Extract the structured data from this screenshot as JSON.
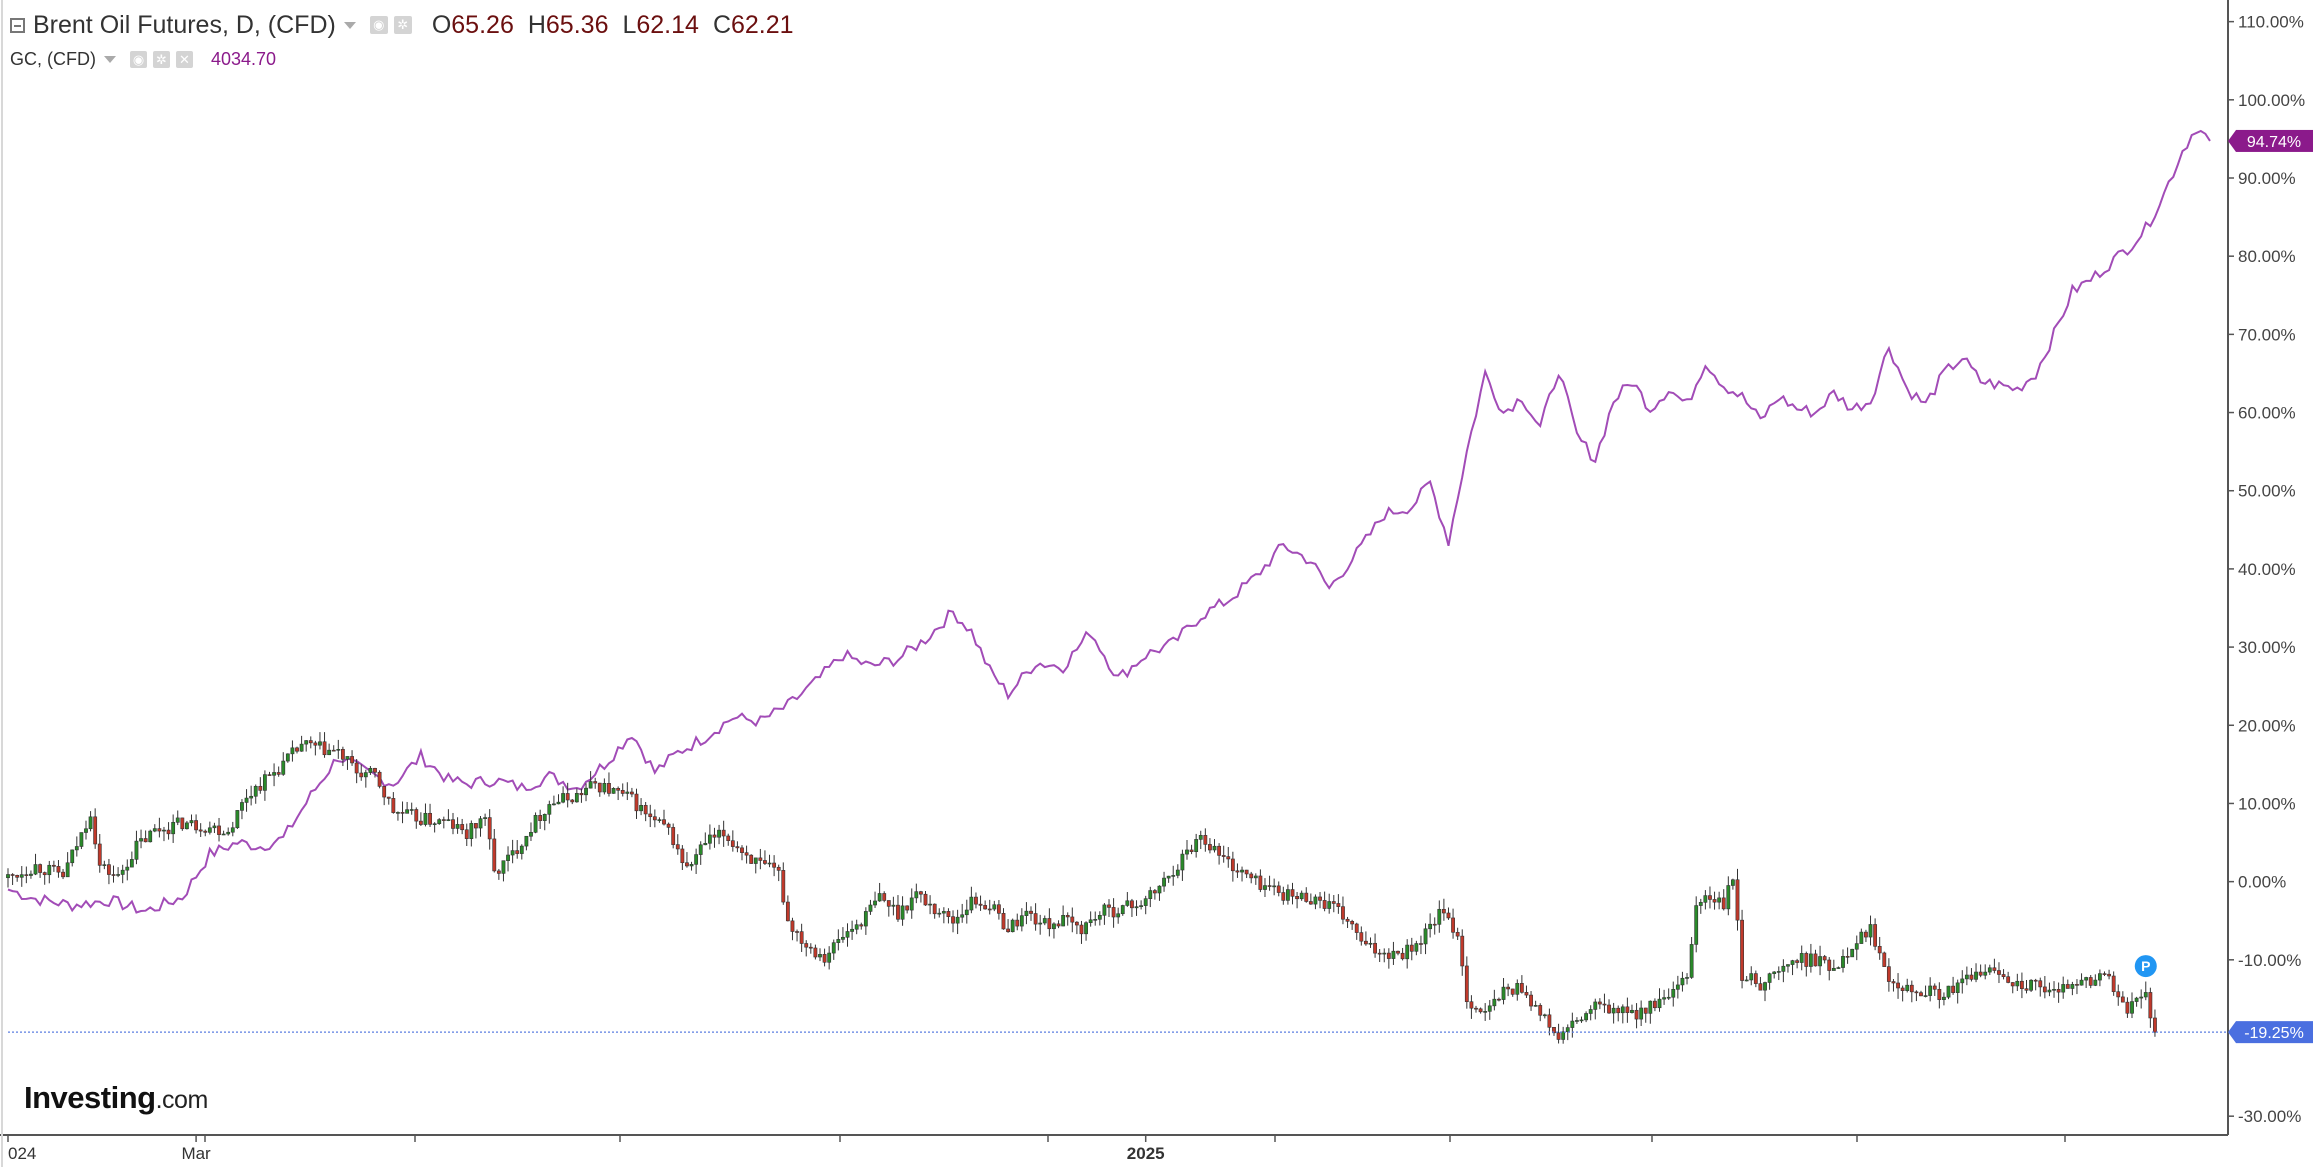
{
  "legend": {
    "main_title": "Brent Oil Futures, D, (CFD)",
    "ohlc": [
      {
        "key": "O",
        "value": "65.26"
      },
      {
        "key": "H",
        "value": "65.36"
      },
      {
        "key": "L",
        "value": "62.14"
      },
      {
        "key": "C",
        "value": "62.21"
      }
    ],
    "compare_title": "GC, (CFD)",
    "compare_value": "4034.70"
  },
  "logo": {
    "brand": "Investing",
    "suffix": ".com"
  },
  "colors": {
    "gold_line": "#a24cb7",
    "candle_up": "#2a8a2a",
    "candle_down": "#c0392b",
    "wick": "#333333",
    "price_line": "#5b7ee0",
    "gold_badge": "#8b1a8b",
    "brent_badge": "#4a6fe0",
    "axis": "#555555"
  },
  "badges": {
    "gold": "94.74%",
    "brent": "-19.25%"
  },
  "marker": {
    "label": "P"
  },
  "chart_data": {
    "type": "line",
    "x_ticks": [
      "024",
      "Mar",
      "2025"
    ],
    "y_ticks": [
      "110.00%",
      "100.00%",
      "90.00%",
      "80.00%",
      "70.00%",
      "60.00%",
      "50.00%",
      "40.00%",
      "30.00%",
      "20.00%",
      "10.00%",
      "0.00%",
      "-10.00%",
      "-19.25%",
      "-30.00%"
    ],
    "y_tick_values": [
      110,
      100,
      90,
      80,
      70,
      60,
      50,
      40,
      30,
      20,
      10,
      0,
      -10,
      -19.25,
      -30
    ],
    "ylim": [
      -31,
      112
    ],
    "xlim": [
      0,
      465
    ],
    "x_tick_positions": [
      0,
      41,
      248
    ],
    "gridlines": false,
    "series": [
      {
        "name": "GC, (CFD)",
        "kind": "line",
        "anchors": [
          [
            0,
            -1.0
          ],
          [
            6,
            -2.2
          ],
          [
            14,
            -3.0
          ],
          [
            22,
            -2.4
          ],
          [
            30,
            -3.8
          ],
          [
            38,
            -2.0
          ],
          [
            44,
            3.5
          ],
          [
            50,
            5.0
          ],
          [
            55,
            4.5
          ],
          [
            60,
            5.5
          ],
          [
            66,
            11.0
          ],
          [
            72,
            16.0
          ],
          [
            78,
            14.0
          ],
          [
            84,
            12.5
          ],
          [
            90,
            16.0
          ],
          [
            96,
            13.0
          ],
          [
            100,
            12.5
          ],
          [
            106,
            13.0
          ],
          [
            112,
            12.0
          ],
          [
            118,
            13.5
          ],
          [
            124,
            12.0
          ],
          [
            130,
            15.0
          ],
          [
            136,
            19.0
          ],
          [
            141,
            14.0
          ],
          [
            146,
            16.5
          ],
          [
            152,
            18.5
          ],
          [
            158,
            21.0
          ],
          [
            164,
            20.5
          ],
          [
            170,
            22.5
          ],
          [
            176,
            25.5
          ],
          [
            182,
            29.0
          ],
          [
            188,
            27.5
          ],
          [
            194,
            28.5
          ],
          [
            200,
            31.0
          ],
          [
            206,
            34.5
          ],
          [
            210,
            32.0
          ],
          [
            214,
            27.0
          ],
          [
            218,
            24.0
          ],
          [
            224,
            28.0
          ],
          [
            230,
            27.5
          ],
          [
            236,
            32.0
          ],
          [
            242,
            26.0
          ],
          [
            248,
            29.0
          ],
          [
            254,
            30.5
          ],
          [
            260,
            34.0
          ],
          [
            266,
            36.0
          ],
          [
            272,
            39.0
          ],
          [
            278,
            43.0
          ],
          [
            284,
            41.0
          ],
          [
            288,
            37.5
          ],
          [
            294,
            42.0
          ],
          [
            300,
            47.0
          ],
          [
            306,
            48.0
          ],
          [
            310,
            51.0
          ],
          [
            314,
            43.5
          ],
          [
            318,
            55.0
          ],
          [
            322,
            65.0
          ],
          [
            326,
            60.0
          ],
          [
            330,
            62.0
          ],
          [
            334,
            58.0
          ],
          [
            338,
            65.5
          ],
          [
            342,
            57.0
          ],
          [
            346,
            54.0
          ],
          [
            350,
            61.5
          ],
          [
            354,
            64.0
          ],
          [
            358,
            60.5
          ],
          [
            362,
            63.0
          ],
          [
            366,
            61.0
          ],
          [
            370,
            66.5
          ],
          [
            374,
            63.5
          ],
          [
            378,
            62.0
          ],
          [
            382,
            59.0
          ],
          [
            386,
            62.0
          ],
          [
            390,
            60.5
          ],
          [
            394,
            60.0
          ],
          [
            398,
            62.5
          ],
          [
            402,
            60.5
          ],
          [
            406,
            61.5
          ],
          [
            410,
            68.5
          ],
          [
            414,
            63.0
          ],
          [
            418,
            61.0
          ],
          [
            422,
            65.0
          ],
          [
            426,
            67.0
          ],
          [
            430,
            64.0
          ],
          [
            434,
            63.5
          ],
          [
            438,
            63.0
          ],
          [
            442,
            65.0
          ],
          [
            446,
            70.0
          ],
          [
            450,
            75.5
          ],
          [
            454,
            77.0
          ],
          [
            458,
            79.0
          ],
          [
            462,
            81.0
          ],
          [
            466,
            83.5
          ],
          [
            470,
            88.0
          ],
          [
            474,
            93.5
          ],
          [
            477,
            96.5
          ],
          [
            480,
            94.74
          ]
        ]
      },
      {
        "name": "Brent Oil Futures, D, (CFD)",
        "kind": "candlestick",
        "anchors": [
          [
            0,
            0.5
          ],
          [
            6,
            2.0
          ],
          [
            12,
            0.8
          ],
          [
            16,
            6.0
          ],
          [
            18,
            9.0
          ],
          [
            20,
            2.0
          ],
          [
            24,
            0.5
          ],
          [
            28,
            4.5
          ],
          [
            32,
            6.5
          ],
          [
            38,
            7.5
          ],
          [
            44,
            7.0
          ],
          [
            48,
            6.5
          ],
          [
            52,
            11.0
          ],
          [
            56,
            13.0
          ],
          [
            60,
            15.0
          ],
          [
            64,
            17.5
          ],
          [
            68,
            17.0
          ],
          [
            72,
            16.5
          ],
          [
            76,
            14.0
          ],
          [
            80,
            13.5
          ],
          [
            84,
            9.0
          ],
          [
            90,
            8.0
          ],
          [
            96,
            7.5
          ],
          [
            100,
            6.0
          ],
          [
            104,
            8.5
          ],
          [
            106,
            1.0
          ],
          [
            110,
            3.5
          ],
          [
            114,
            7.0
          ],
          [
            118,
            10.0
          ],
          [
            124,
            11.0
          ],
          [
            128,
            12.5
          ],
          [
            132,
            11.5
          ],
          [
            136,
            10.5
          ],
          [
            140,
            8.0
          ],
          [
            144,
            6.5
          ],
          [
            148,
            1.5
          ],
          [
            152,
            5.0
          ],
          [
            156,
            6.0
          ],
          [
            160,
            4.0
          ],
          [
            164,
            2.0
          ],
          [
            168,
            1.0
          ],
          [
            170,
            -5.0
          ],
          [
            174,
            -8.0
          ],
          [
            178,
            -9.5
          ],
          [
            182,
            -7.0
          ],
          [
            186,
            -5.0
          ],
          [
            190,
            -2.0
          ],
          [
            194,
            -4.0
          ],
          [
            198,
            -1.5
          ],
          [
            202,
            -3.5
          ],
          [
            206,
            -5.0
          ],
          [
            210,
            -2.5
          ],
          [
            214,
            -3.0
          ],
          [
            218,
            -6.0
          ],
          [
            222,
            -4.0
          ],
          [
            226,
            -5.5
          ],
          [
            230,
            -5.0
          ],
          [
            234,
            -6.0
          ],
          [
            238,
            -4.0
          ],
          [
            242,
            -3.5
          ],
          [
            248,
            -2.5
          ],
          [
            252,
            0.0
          ],
          [
            256,
            3.0
          ],
          [
            260,
            6.0
          ],
          [
            264,
            3.5
          ],
          [
            268,
            1.5
          ],
          [
            272,
            0.0
          ],
          [
            276,
            -1.0
          ],
          [
            280,
            -2.0
          ],
          [
            284,
            -2.0
          ],
          [
            288,
            -3.0
          ],
          [
            292,
            -5.0
          ],
          [
            296,
            -8.5
          ],
          [
            300,
            -9.0
          ],
          [
            304,
            -9.0
          ],
          [
            308,
            -7.5
          ],
          [
            312,
            -4.0
          ],
          [
            316,
            -6.5
          ],
          [
            318,
            -15.0
          ],
          [
            322,
            -17.0
          ],
          [
            326,
            -14.0
          ],
          [
            330,
            -13.5
          ],
          [
            334,
            -17.0
          ],
          [
            338,
            -20.0
          ],
          [
            342,
            -18.0
          ],
          [
            346,
            -16.0
          ],
          [
            350,
            -16.5
          ],
          [
            354,
            -17.0
          ],
          [
            358,
            -16.0
          ],
          [
            362,
            -15.0
          ],
          [
            366,
            -12.5
          ],
          [
            368,
            -3.0
          ],
          [
            370,
            -2.0
          ],
          [
            374,
            -3.0
          ],
          [
            376,
            0.5
          ],
          [
            378,
            -12.0
          ],
          [
            382,
            -13.0
          ],
          [
            386,
            -11.5
          ],
          [
            390,
            -10.0
          ],
          [
            394,
            -10.0
          ],
          [
            398,
            -11.0
          ],
          [
            402,
            -8.0
          ],
          [
            406,
            -6.0
          ],
          [
            410,
            -12.0
          ],
          [
            414,
            -13.5
          ],
          [
            418,
            -14.0
          ],
          [
            422,
            -14.5
          ],
          [
            426,
            -13.0
          ],
          [
            430,
            -11.5
          ],
          [
            434,
            -11.5
          ],
          [
            438,
            -13.0
          ],
          [
            442,
            -13.5
          ],
          [
            446,
            -14.5
          ],
          [
            450,
            -12.5
          ],
          [
            454,
            -13.0
          ],
          [
            458,
            -11.5
          ],
          [
            460,
            -15.5
          ],
          [
            462,
            -16.5
          ],
          [
            466,
            -14.0
          ],
          [
            468,
            -19.25
          ]
        ]
      }
    ]
  }
}
